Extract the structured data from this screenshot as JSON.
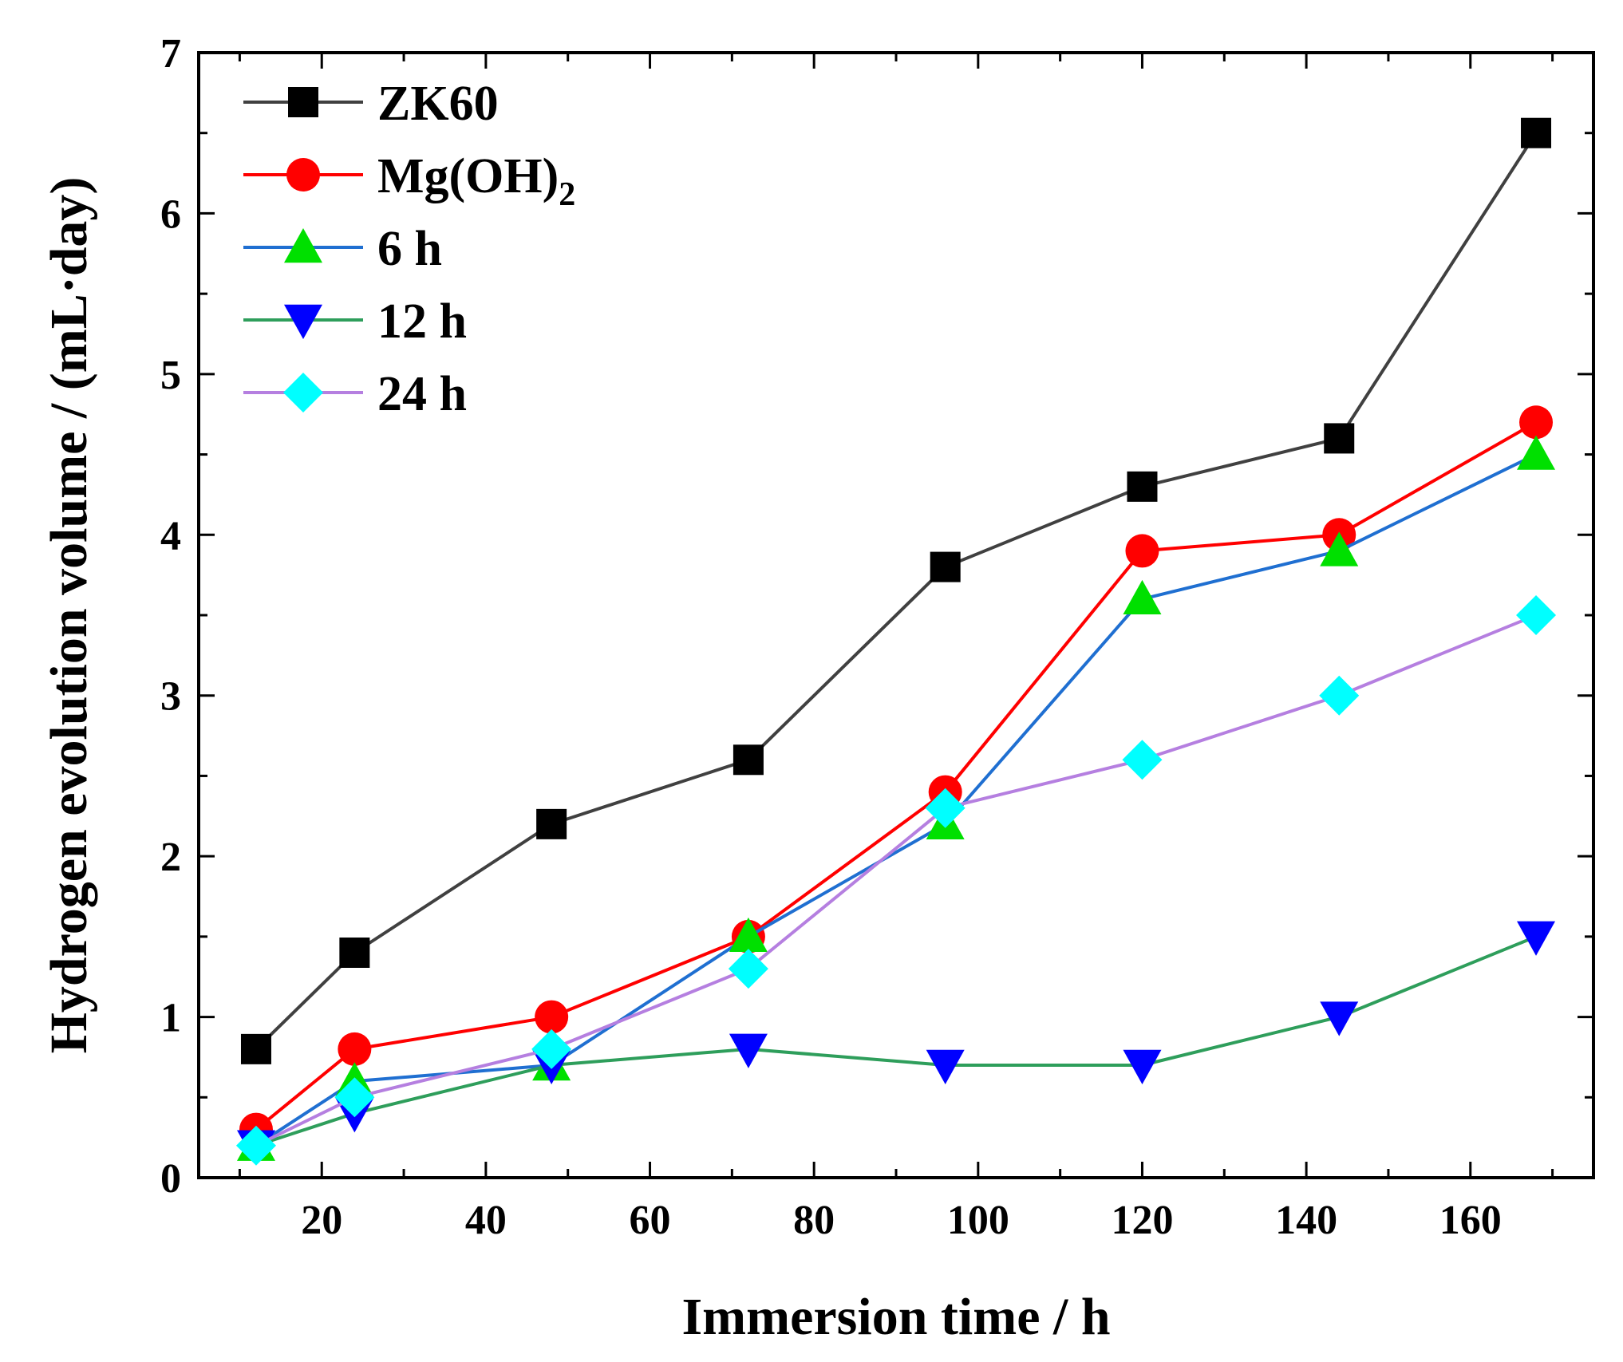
{
  "chart_data": {
    "type": "line",
    "title": "",
    "xlabel": "Immersion time / h",
    "ylabel": "Hydrogen evolution volume / (mL·day)",
    "xlim": [
      5,
      175
    ],
    "ylim": [
      0,
      7
    ],
    "xticks": [
      20,
      40,
      60,
      80,
      100,
      120,
      140,
      160
    ],
    "yticks": [
      0,
      1,
      2,
      3,
      4,
      5,
      6,
      7
    ],
    "x": [
      12,
      24,
      48,
      72,
      96,
      120,
      144,
      168
    ],
    "legend_position": "top-left",
    "series": [
      {
        "name": "ZK60",
        "line_color": "#404040",
        "marker": "square",
        "marker_color": "#000000",
        "values": [
          0.8,
          1.4,
          2.2,
          2.6,
          3.8,
          4.3,
          4.6,
          6.5
        ]
      },
      {
        "name": "Mg(OH)",
        "name_subscript": "2",
        "line_color": "#ff0000",
        "marker": "circle",
        "marker_color": "#ff0000",
        "values": [
          0.3,
          0.8,
          1.0,
          1.5,
          2.4,
          3.9,
          4.0,
          4.7
        ]
      },
      {
        "name": "6 h",
        "line_color": "#1f6fd1",
        "marker": "triangle-up",
        "marker_color": "#00e000",
        "values": [
          0.2,
          0.6,
          0.7,
          1.5,
          2.2,
          3.6,
          3.9,
          4.5
        ]
      },
      {
        "name": "12 h",
        "line_color": "#2e9e5b",
        "marker": "triangle-down",
        "marker_color": "#0000ff",
        "values": [
          0.2,
          0.4,
          0.7,
          0.8,
          0.7,
          0.7,
          1.0,
          1.5
        ]
      },
      {
        "name": "24 h",
        "line_color": "#b57fe0",
        "marker": "diamond",
        "marker_color": "#00ffff",
        "values": [
          0.2,
          0.5,
          0.8,
          1.3,
          2.3,
          2.6,
          3.0,
          3.5
        ]
      }
    ]
  }
}
